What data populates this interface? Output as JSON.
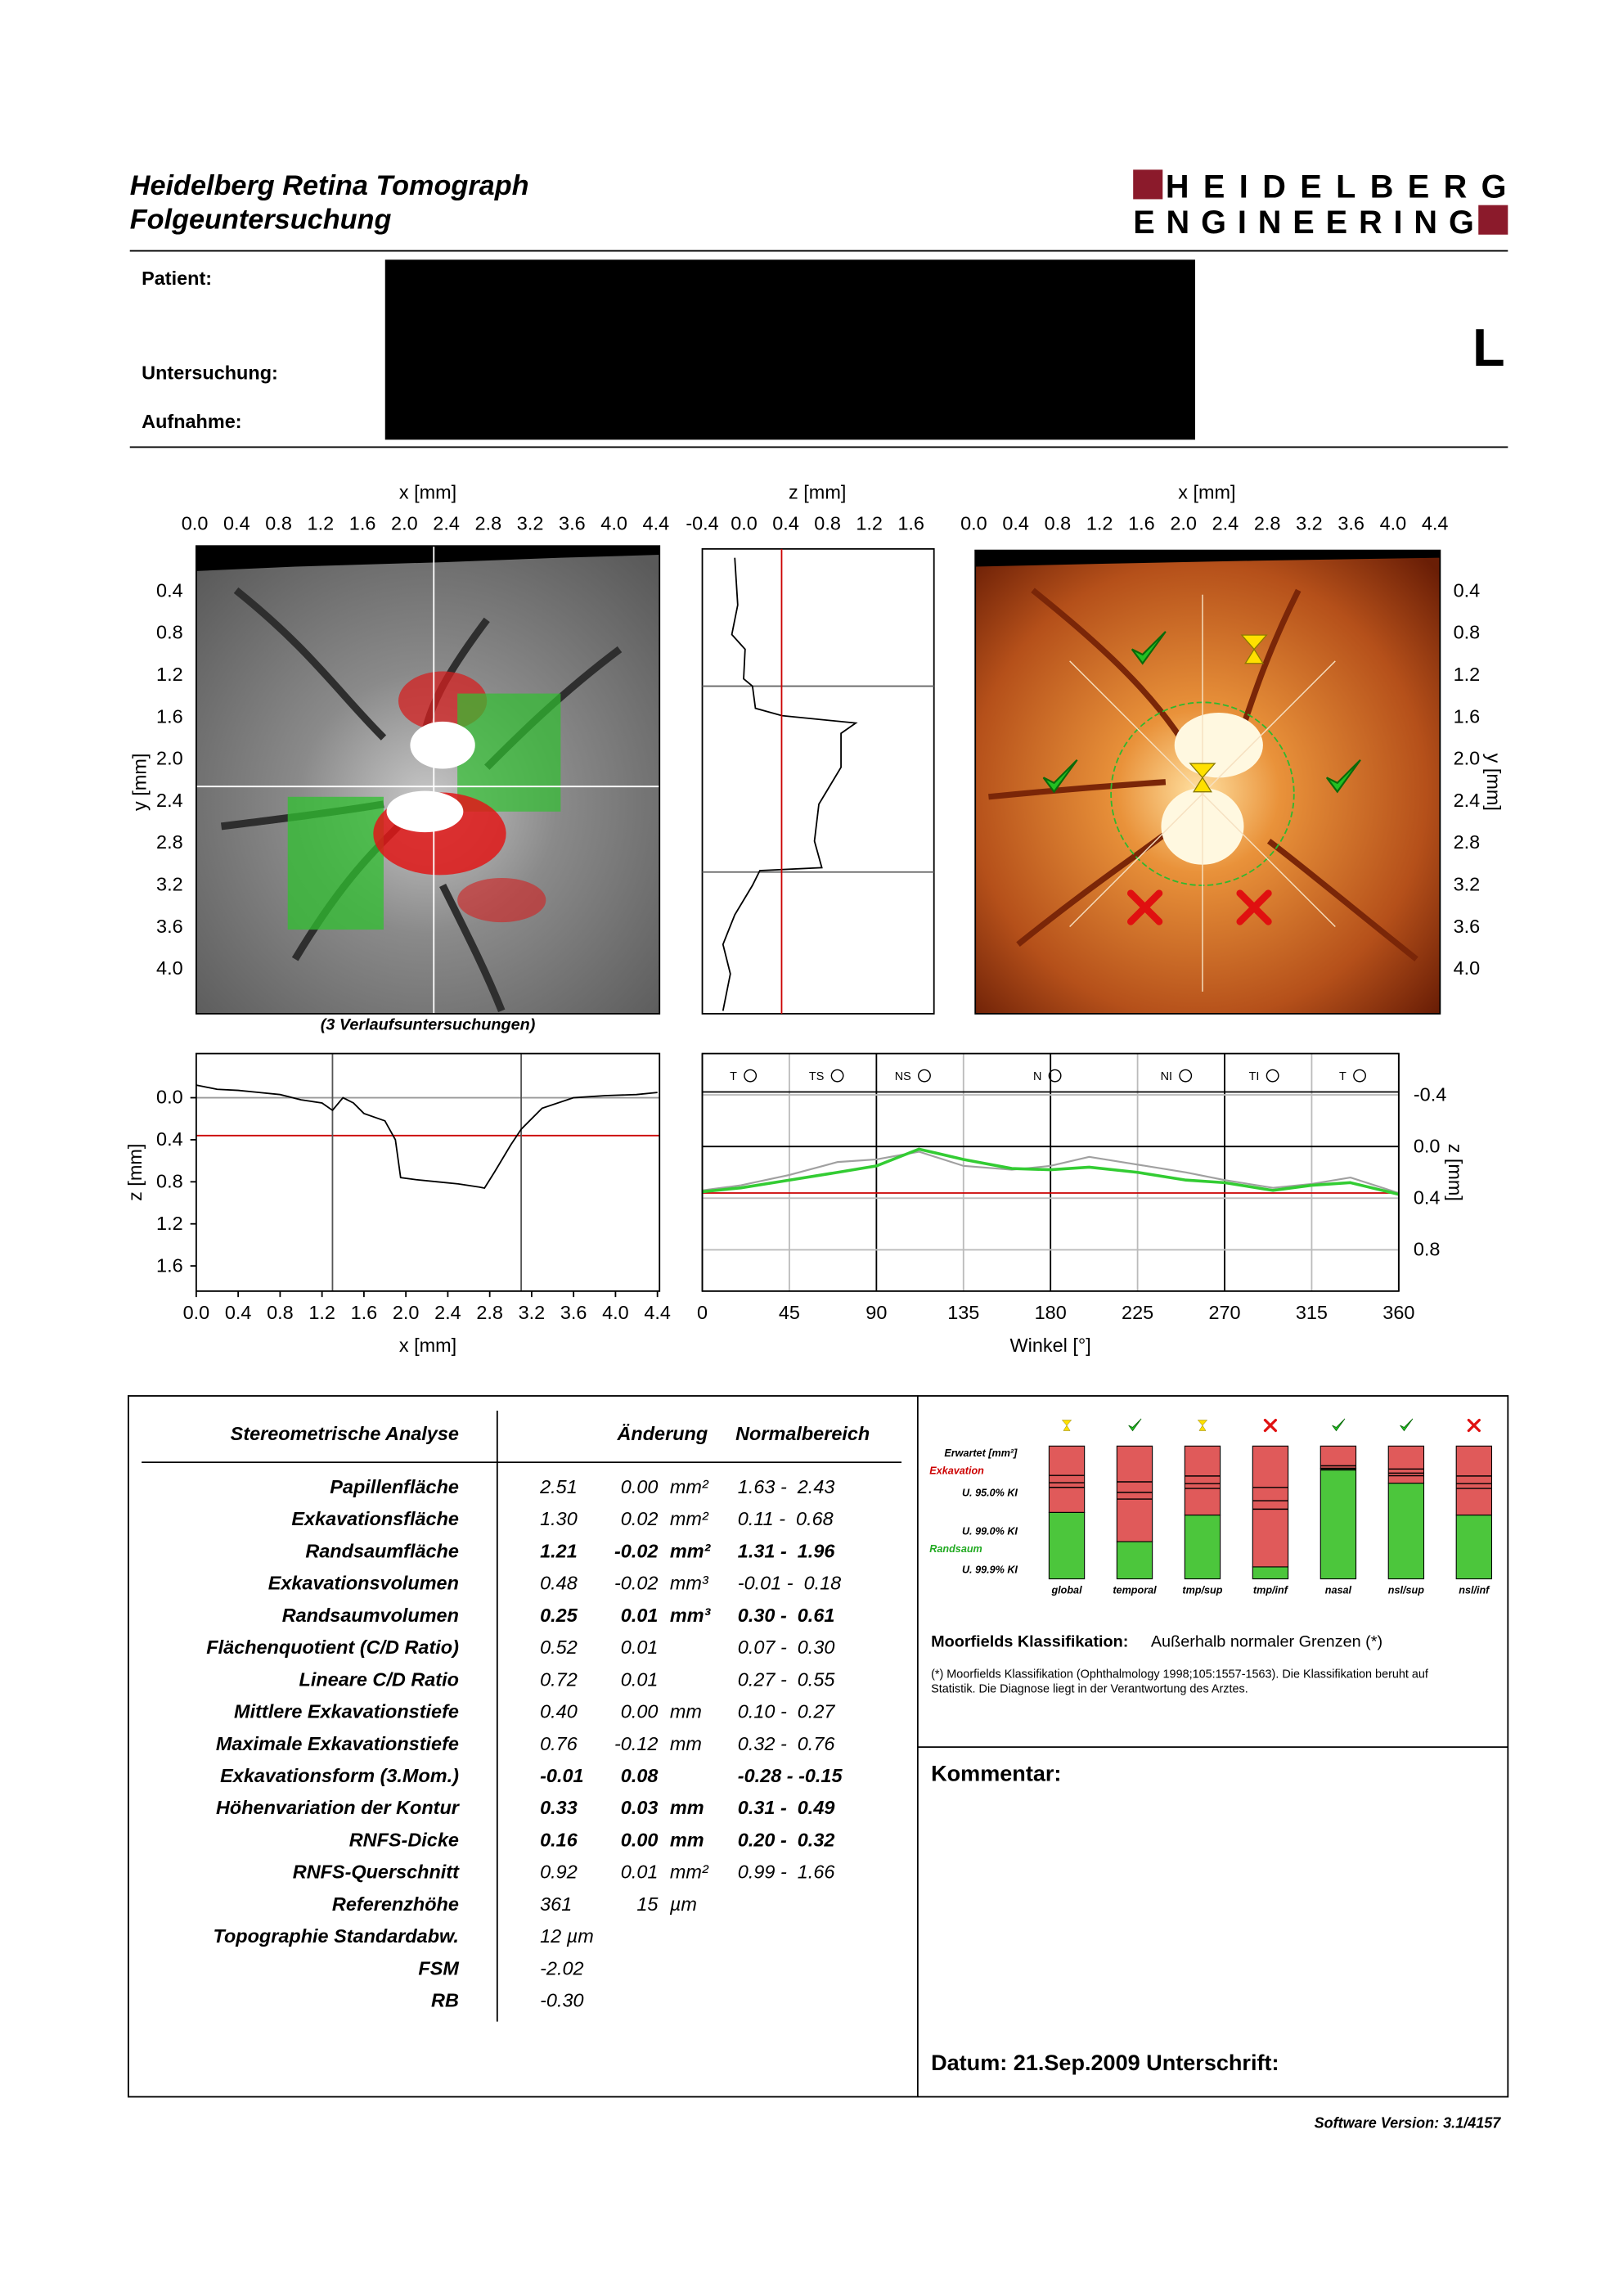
{
  "header": {
    "title1": "Heidelberg Retina Tomograph",
    "title2": "Folgeuntersuchung"
  },
  "logo": {
    "line1": "HEIDELBERG",
    "line2": "ENGINEERING"
  },
  "patient": {
    "labels": [
      "Patient:",
      "Untersuchung:",
      "Aufnahme:"
    ],
    "eye": "L"
  },
  "images": {
    "x_label": "x [mm]",
    "y_label": "y [mm]",
    "xlim": [
      0,
      4.42
    ],
    "ylim": [
      0,
      4.4
    ],
    "xticks": [
      {
        "value": 0,
        "label": "0.0"
      },
      0.4,
      0.8,
      1.2,
      1.6,
      {
        "value": 2,
        "label": "2.0"
      },
      2.4,
      2.8,
      3.2,
      3.6,
      {
        "value": 4,
        "label": "4.0"
      },
      4.4
    ],
    "yticks": [
      0.4,
      0.8,
      1.2,
      1.6,
      {
        "value": 2,
        "label": "2.0"
      },
      2.4,
      2.8,
      3.2,
      3.6,
      {
        "value": 4,
        "label": "4.0"
      }
    ],
    "caption": "(3 Verlaufsuntersuchungen)"
  },
  "z_panel": {
    "label": "z [mm]",
    "xlim": [
      -0.4,
      1.82
    ],
    "xticks": [
      -0.4,
      {
        "value": 0,
        "label": "0.0"
      },
      0.4,
      0.8,
      1.2,
      1.6
    ],
    "reference": 0.36
  },
  "depth_profile": {
    "type": "line",
    "x_label": "x [mm]",
    "y_label": "z [mm]",
    "xlim": [
      0,
      4.42
    ],
    "ylim": [
      -0.42,
      1.84
    ],
    "xticks": [
      {
        "value": 0,
        "label": "0.0"
      },
      0.4,
      0.8,
      1.2,
      1.6,
      {
        "value": 2,
        "label": "2.0"
      },
      2.4,
      2.8,
      3.2,
      3.6,
      {
        "value": 4,
        "label": "4.0"
      },
      4.4
    ],
    "yticks": [
      {
        "value": 0,
        "label": "0.0"
      },
      0.4,
      0.8,
      1.2,
      1.6
    ],
    "x": [
      0,
      0.2,
      0.4,
      0.6,
      0.8,
      1.0,
      1.2,
      1.3,
      1.4,
      1.5,
      1.6,
      1.8,
      1.9,
      1.95,
      2.1,
      2.3,
      2.5,
      2.7,
      2.75,
      2.85,
      3.0,
      3.1,
      3.3,
      3.6,
      3.9,
      4.2,
      4.4
    ],
    "values": [
      -0.12,
      -0.08,
      -0.07,
      -0.05,
      -0.03,
      0.02,
      0.05,
      0.12,
      0.0,
      0.05,
      0.15,
      0.22,
      0.4,
      0.76,
      0.78,
      0.8,
      0.82,
      0.85,
      0.86,
      0.7,
      0.45,
      0.3,
      0.1,
      0.0,
      -0.02,
      -0.03,
      -0.05
    ],
    "markers": [
      1.3,
      3.1
    ],
    "reference": 0.36,
    "color": "#000000",
    "reference_color": "#cc0000"
  },
  "tsnit": {
    "type": "line",
    "x_label": "Winkel [°]",
    "y_label": "z [mm]",
    "xlim": [
      0,
      360
    ],
    "ylim": [
      -0.72,
      1.12
    ],
    "xticks": [
      0,
      45,
      90,
      135,
      180,
      225,
      270,
      315,
      360
    ],
    "yticks": [
      -0.4,
      {
        "value": 0,
        "label": "0.0"
      },
      0.4,
      0.8
    ],
    "sectors": [
      "T",
      "TS",
      "NS",
      "N",
      "NI",
      "TI",
      "T"
    ],
    "x": [
      0,
      20,
      45,
      70,
      90,
      112,
      135,
      160,
      180,
      200,
      225,
      250,
      270,
      295,
      315,
      335,
      360
    ],
    "series": [
      {
        "color": "#a0a0a0",
        "values": [
          0.34,
          0.3,
          0.22,
          0.12,
          0.1,
          0.04,
          0.15,
          0.18,
          0.15,
          0.08,
          0.14,
          0.2,
          0.26,
          0.32,
          0.29,
          0.24,
          0.36
        ]
      },
      {
        "color": "#33cc33",
        "values": [
          0.35,
          0.32,
          0.26,
          0.2,
          0.15,
          0.02,
          0.1,
          0.17,
          0.18,
          0.16,
          0.2,
          0.26,
          0.28,
          0.34,
          0.3,
          0.28,
          0.37
        ]
      }
    ],
    "reference": 0.36,
    "reference_color": "#cc0000"
  },
  "table": {
    "headers": [
      "Stereometrische Analyse",
      "Änderung",
      "Normalbereich"
    ],
    "rows": [
      [
        "Papillenfläche",
        "2.51",
        "0.00",
        "mm²",
        "1.63 -  2.43"
      ],
      [
        "Exkavationsfläche",
        "1.30",
        "0.02",
        "mm²",
        "0.11 -  0.68"
      ],
      [
        "Randsaumfläche",
        "1.21",
        "-0.02",
        "mm²",
        "1.31 -  1.96"
      ],
      [
        "Exkavationsvolumen",
        "0.48",
        "-0.02",
        "mm³",
        "-0.01 -  0.18"
      ],
      [
        "Randsaumvolumen",
        "0.25",
        "0.01",
        "mm³",
        "0.30 -  0.61"
      ],
      [
        "Flächenquotient (C/D Ratio)",
        "0.52",
        "0.01",
        null,
        "0.07 -  0.30"
      ],
      [
        "Lineare C/D Ratio",
        "0.72",
        "0.01",
        null,
        "0.27 -  0.55"
      ],
      [
        "Mittlere Exkavationstiefe",
        "0.40",
        "0.00",
        "mm",
        "0.10 -  0.27"
      ],
      [
        "Maximale Exkavationstiefe",
        "0.76",
        "-0.12",
        "mm",
        "0.32 -  0.76"
      ],
      [
        "Exkavationsform (3.Mom.)",
        "-0.01",
        "0.08",
        null,
        "-0.28 - -0.15"
      ],
      [
        "Höhenvariation der Kontur",
        "0.33",
        "0.03",
        "mm",
        "0.31 -  0.49"
      ],
      [
        "RNFS-Dicke",
        "0.16",
        "0.00",
        "mm",
        "0.20 -  0.32"
      ],
      [
        "RNFS-Querschnitt",
        "0.92",
        "0.01",
        "mm²",
        "0.99 -  1.66"
      ],
      [
        "Referenzhöhe",
        "361",
        "15",
        "µm",
        null
      ],
      [
        "Topographie Standardabw.",
        "12  µm",
        null,
        null,
        null
      ],
      [
        "FSM",
        "-2.02",
        null,
        null,
        null
      ],
      [
        "RB",
        "-0.30",
        null,
        null,
        null
      ]
    ],
    "bold": [
      false,
      false,
      true,
      false,
      true,
      false,
      false,
      false,
      false,
      true,
      true,
      true,
      false,
      false,
      false,
      false,
      false
    ]
  },
  "moorfields": {
    "legend": {
      "expected": "Erwartet [mm²]",
      "cup": "Exkavation",
      "ci95": "U. 95.0% KI",
      "ci99": "U. 99.0% KI",
      "rim": "Randsaum",
      "ci999": "U. 99.9% KI"
    },
    "categories": [
      "global",
      "temporal",
      "tmp/sup",
      "tmp/inf",
      "nasal",
      "nsl/sup",
      "nsl/inf"
    ],
    "cup_fraction": [
      0.5,
      0.72,
      0.52,
      0.91,
      0.17,
      0.28,
      0.52
    ],
    "status": [
      "borderline",
      "normal",
      "borderline",
      "outside",
      "normal",
      "normal",
      "outside"
    ],
    "cup_color": "#e05a5a",
    "rim_color": "#4cc63c",
    "label": "Moorfields Klassifikation:",
    "result": "Außerhalb normaler Grenzen (*)",
    "note": [
      "(*) Moorfields Klassifikation (Ophthalmology 1998;105:1557-1563). Die Klassifikation beruht auf",
      "Statistik. Die Diagnose liegt in der Verantwortung des Arztes."
    ]
  },
  "comment": "Kommentar:",
  "date": "Datum: 21.Sep.2009  Unterschrift:",
  "software": "Software Version: 3.1/4157"
}
